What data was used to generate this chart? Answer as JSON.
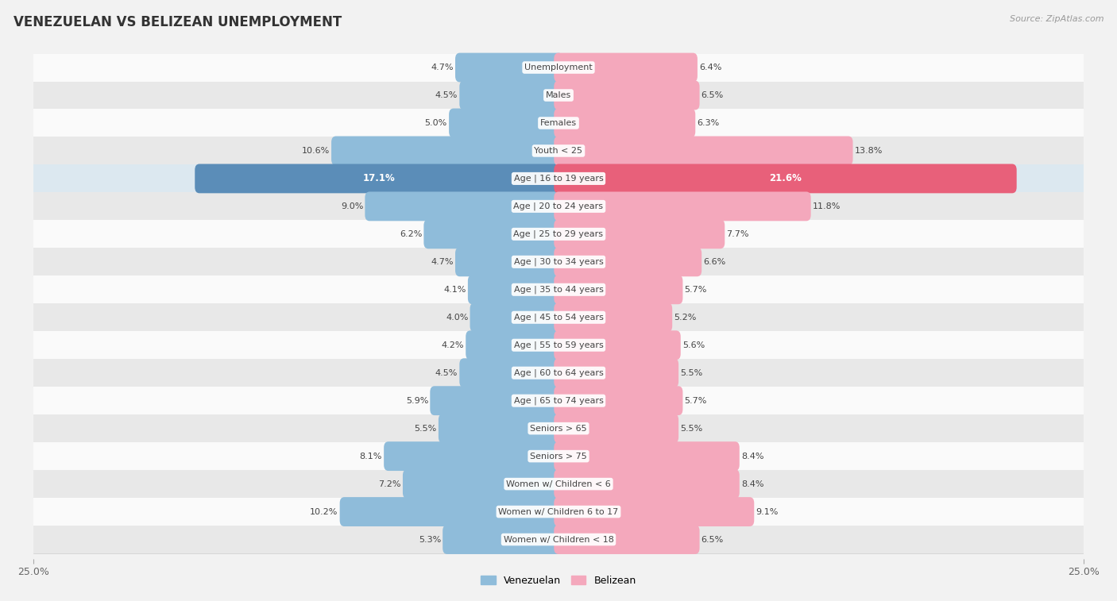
{
  "title": "VENEZUELAN VS BELIZEAN UNEMPLOYMENT",
  "source": "Source: ZipAtlas.com",
  "categories": [
    "Unemployment",
    "Males",
    "Females",
    "Youth < 25",
    "Age | 16 to 19 years",
    "Age | 20 to 24 years",
    "Age | 25 to 29 years",
    "Age | 30 to 34 years",
    "Age | 35 to 44 years",
    "Age | 45 to 54 years",
    "Age | 55 to 59 years",
    "Age | 60 to 64 years",
    "Age | 65 to 74 years",
    "Seniors > 65",
    "Seniors > 75",
    "Women w/ Children < 6",
    "Women w/ Children 6 to 17",
    "Women w/ Children < 18"
  ],
  "venezuelan": [
    4.7,
    4.5,
    5.0,
    10.6,
    17.1,
    9.0,
    6.2,
    4.7,
    4.1,
    4.0,
    4.2,
    4.5,
    5.9,
    5.5,
    8.1,
    7.2,
    10.2,
    5.3
  ],
  "belizean": [
    6.4,
    6.5,
    6.3,
    13.8,
    21.6,
    11.8,
    7.7,
    6.6,
    5.7,
    5.2,
    5.6,
    5.5,
    5.7,
    5.5,
    8.4,
    8.4,
    9.1,
    6.5
  ],
  "venezuelan_color": "#8fbcda",
  "belizean_color": "#f4a8bc",
  "venezuelan_highlight_color": "#5b8db8",
  "belizean_highlight_color": "#e8607a",
  "background_color": "#f2f2f2",
  "row_odd_color": "#fafafa",
  "row_even_color": "#e8e8e8",
  "highlight_row_color": "#dce8f0",
  "axis_limit": 25.0,
  "bar_height": 0.62,
  "highlight_indices": [
    4
  ],
  "label_dark_color": "#444444",
  "label_white_color": "#ffffff",
  "title_color": "#333333",
  "source_color": "#999999",
  "legend_venezuelan": "Venezuelan",
  "legend_belizean": "Belizean"
}
